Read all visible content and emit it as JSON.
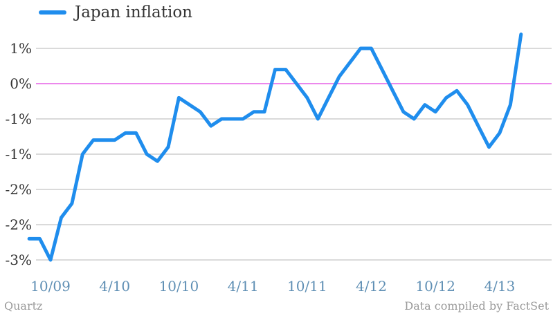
{
  "legend": {
    "label": "Japan inflation"
  },
  "footer": {
    "source_left": "Quartz",
    "source_right": "Data compiled by FactSet"
  },
  "colors": {
    "line": "#1f8ded",
    "zero_line": "#e040e0",
    "grid": "#b5b5b5",
    "x_tick": "#5f8fb4",
    "y_tick": "#333333"
  },
  "chart_data": {
    "type": "line",
    "title": "",
    "xlabel": "",
    "ylabel": "",
    "ylim": [
      -2.6,
      1.2
    ],
    "yticks": [
      1,
      0.5,
      0,
      -0.5,
      -1,
      -1.5,
      -2,
      -2.5
    ],
    "ytick_labels": [
      "1%",
      "0%",
      "-1%",
      "-1%",
      "-2%",
      "-2%",
      "-3%"
    ],
    "ytick_values": [
      0.5,
      0,
      -0.5,
      -1,
      -1.5,
      -2,
      -2.5
    ],
    "xtick_labels": [
      "10/09",
      "4/10",
      "10/10",
      "4/11",
      "10/11",
      "4/12",
      "10/12",
      "4/13"
    ],
    "xtick_month_index": [
      0,
      6,
      12,
      18,
      24,
      30,
      36,
      42
    ],
    "x_start": "2009-10",
    "series": [
      {
        "name": "Japan inflation",
        "x": [
          "2009-08",
          "2009-09",
          "2009-10",
          "2009-11",
          "2009-12",
          "2010-01",
          "2010-02",
          "2010-03",
          "2010-04",
          "2010-05",
          "2010-06",
          "2010-07",
          "2010-08",
          "2010-09",
          "2010-10",
          "2010-11",
          "2010-12",
          "2011-01",
          "2011-02",
          "2011-03",
          "2011-04",
          "2011-05",
          "2011-06",
          "2011-07",
          "2011-08",
          "2011-09",
          "2011-10",
          "2011-11",
          "2011-12",
          "2012-01",
          "2012-02",
          "2012-03",
          "2012-04",
          "2012-05",
          "2012-06",
          "2012-07",
          "2012-08",
          "2012-09",
          "2012-10",
          "2012-11",
          "2012-12",
          "2013-01",
          "2013-02",
          "2013-03",
          "2013-04",
          "2013-05",
          "2013-06"
        ],
        "values": [
          -2.2,
          -2.2,
          -2.5,
          -1.9,
          -1.7,
          -1.0,
          -0.8,
          -0.8,
          -0.8,
          -0.7,
          -0.7,
          -1.0,
          -1.1,
          -0.9,
          -0.2,
          -0.3,
          -0.4,
          -0.6,
          -0.5,
          -0.5,
          -0.5,
          -0.4,
          -0.4,
          0.2,
          0.2,
          0.0,
          -0.2,
          -0.5,
          -0.2,
          0.1,
          0.3,
          0.5,
          0.5,
          0.2,
          -0.1,
          -0.4,
          -0.5,
          -0.3,
          -0.4,
          -0.2,
          -0.1,
          -0.3,
          -0.6,
          -0.9,
          -0.7,
          -0.3,
          0.7
        ]
      }
    ]
  }
}
